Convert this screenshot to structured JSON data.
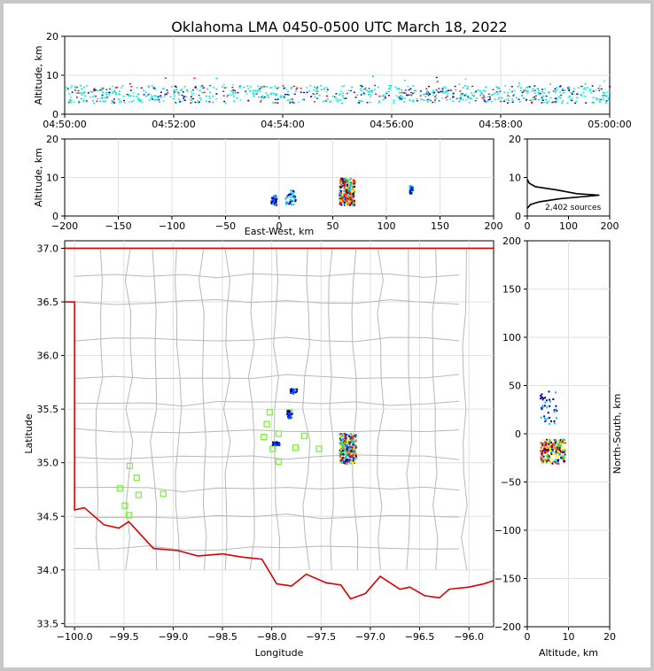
{
  "chart_data": [
    {
      "panel": "time-altitude",
      "type": "scatter",
      "title": "Oklahoma LMA 0450-0500 UTC March 18, 2022",
      "xlabel": "",
      "ylabel": "Altitude, km",
      "x_ticks": [
        "04:50:00",
        "04:52:00",
        "04:54:00",
        "04:56:00",
        "04:58:00",
        "05:00:00"
      ],
      "y_ticks": [
        "0",
        "10",
        "20"
      ],
      "xlim": [
        0,
        10
      ],
      "ylim": [
        0,
        20
      ],
      "grid": true,
      "colors": [
        "#00e0c0",
        "#00ffff",
        "#0000aa",
        "#ff0000",
        "#8a1a8a",
        "#444444"
      ],
      "note_range_km": [
        3,
        11
      ]
    },
    {
      "panel": "east-west-altitude",
      "type": "scatter",
      "xlabel": "East-West, km",
      "ylabel": "Altitude, km",
      "x_ticks": [
        "−200",
        "−150",
        "−100",
        "−50",
        "0",
        "50",
        "100",
        "150",
        "200"
      ],
      "y_ticks": [
        "0",
        "10",
        "20"
      ],
      "xlim": [
        -200,
        200
      ],
      "ylim": [
        0,
        20
      ],
      "grid": true,
      "clusters": [
        {
          "x": [
            -8,
            -3
          ],
          "y": [
            3,
            5.5
          ]
        },
        {
          "x": [
            5,
            15
          ],
          "y": [
            3,
            7
          ]
        },
        {
          "x": [
            55,
            70
          ],
          "y": [
            3,
            10
          ]
        },
        {
          "x": [
            121,
            124
          ],
          "y": [
            6,
            8
          ]
        }
      ]
    },
    {
      "panel": "altitude-histogram",
      "type": "line",
      "x_ticks": [
        "0",
        "100",
        "200"
      ],
      "y_ticks": [
        "0",
        "10",
        "20"
      ],
      "xlim": [
        0,
        200
      ],
      "ylim": [
        0,
        20
      ],
      "annotation": "2,402 sources",
      "profile": [
        [
          0,
          2
        ],
        [
          8,
          3
        ],
        [
          30,
          3.7
        ],
        [
          80,
          4.5
        ],
        [
          175,
          5.4
        ],
        [
          120,
          5.8
        ],
        [
          70,
          6.8
        ],
        [
          20,
          7.6
        ],
        [
          5,
          8.5
        ],
        [
          0,
          9.5
        ]
      ]
    },
    {
      "panel": "plan-view",
      "type": "scatter",
      "xlabel": "Longitude",
      "ylabel": "Latitude",
      "x_ticks": [
        "−100.0",
        "−99.5",
        "−99.0",
        "−98.5",
        "−98.0",
        "−97.5",
        "−97.0",
        "−96.5",
        "−96.0"
      ],
      "y_ticks": [
        "33.5",
        "34.0",
        "34.5",
        "35.0",
        "35.5",
        "36.0",
        "36.5",
        "37.0"
      ],
      "xlim": [
        -100.1,
        -95.75
      ],
      "ylim": [
        33.47,
        37.07
      ],
      "grid": true,
      "stations": [
        [
          -99.44,
          34.97
        ],
        [
          -99.37,
          34.86
        ],
        [
          -99.54,
          34.76
        ],
        [
          -99.35,
          34.7
        ],
        [
          -99.1,
          34.71
        ],
        [
          -99.49,
          34.6
        ],
        [
          -99.45,
          34.51
        ],
        [
          -98.02,
          35.47
        ],
        [
          -98.05,
          35.36
        ],
        [
          -98.08,
          35.24
        ],
        [
          -97.93,
          35.27
        ],
        [
          -97.99,
          35.13
        ],
        [
          -97.93,
          35.01
        ],
        [
          -97.82,
          35.47
        ],
        [
          -97.76,
          35.14
        ],
        [
          -97.67,
          35.25
        ],
        [
          -97.52,
          35.13
        ]
      ],
      "clusters": [
        {
          "lon": [
            -97.32,
            -97.15
          ],
          "lat": [
            35.0,
            35.28
          ]
        },
        {
          "lon": [
            -97.82,
            -97.75
          ],
          "lat": [
            35.65,
            35.7
          ]
        },
        {
          "lon": [
            -97.88,
            -97.8
          ],
          "lat": [
            35.42,
            35.5
          ]
        },
        {
          "lon": [
            -98.0,
            -97.93
          ],
          "lat": [
            35.17,
            35.2
          ]
        }
      ],
      "station_color": "#80f040",
      "border_color": "#dd0000"
    },
    {
      "panel": "north-south-altitude",
      "type": "scatter",
      "xlabel": "Altitude, km",
      "ylabel": "North-South, km",
      "x_ticks": [
        "0",
        "10",
        "20"
      ],
      "y_ticks": [
        "200",
        "150",
        "100",
        "50",
        "0",
        "−50",
        "−100",
        "−150",
        "−200"
      ],
      "xlim": [
        0,
        20
      ],
      "ylim": [
        -200,
        200
      ],
      "grid": true,
      "clusters": [
        {
          "x": [
            3,
            9
          ],
          "y": [
            -30,
            -5
          ]
        },
        {
          "x": [
            3,
            7
          ],
          "y": [
            10,
            45
          ]
        }
      ]
    }
  ]
}
